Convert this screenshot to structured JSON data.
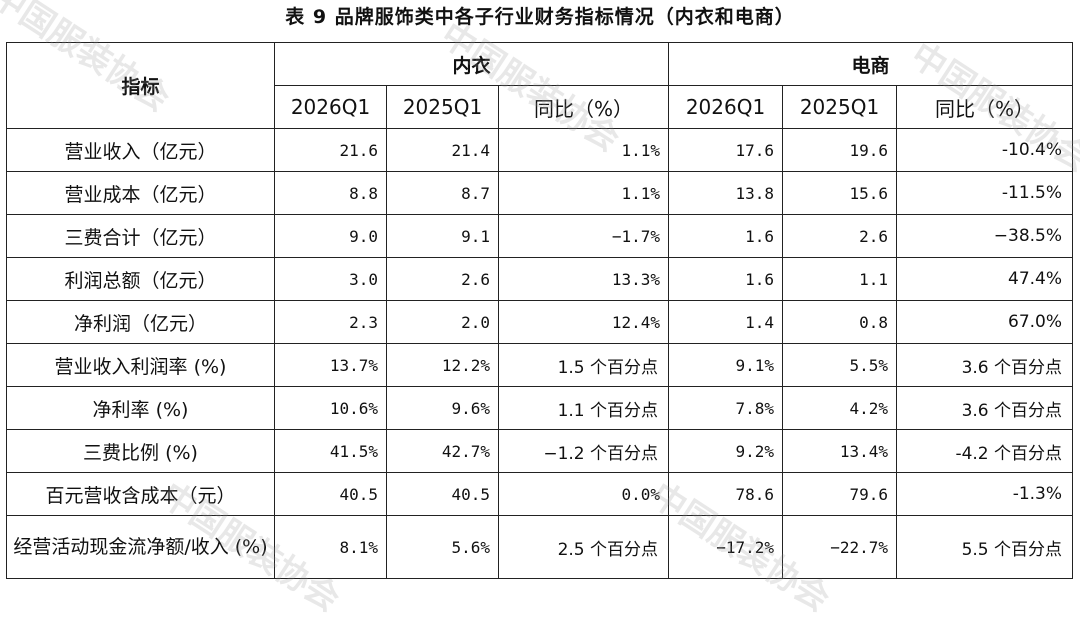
{
  "title": "表 9   品牌服饰类中各子行业财务指标情况（内衣和电商）",
  "header": {
    "indicator": "指标",
    "group1": "内衣",
    "group2": "电商",
    "sub": [
      "2026Q1",
      "2025Q1",
      "同比（%）",
      "2026Q1",
      "2025Q1",
      "同比（%）"
    ]
  },
  "rows": [
    {
      "label": "营业收入（亿元）",
      "cells": [
        "21.6",
        "21.4",
        "1.1%",
        "17.6",
        "19.6",
        "-10.4%"
      ]
    },
    {
      "label": "营业成本（亿元）",
      "cells": [
        "8.8",
        "8.7",
        "1.1%",
        "13.8",
        "15.6",
        "-11.5%"
      ]
    },
    {
      "label": "三费合计（亿元）",
      "cells": [
        "9.0",
        "9.1",
        "−1.7%",
        "1.6",
        "2.6",
        "−38.5%"
      ]
    },
    {
      "label": "利润总额（亿元）",
      "cells": [
        "3.0",
        "2.6",
        "13.3%",
        "1.6",
        "1.1",
        "47.4%"
      ]
    },
    {
      "label": "净利润（亿元）",
      "cells": [
        "2.3",
        "2.0",
        "12.4%",
        "1.4",
        "0.8",
        "67.0%"
      ]
    },
    {
      "label": "营业收入利润率 (%)",
      "cells": [
        "13.7%",
        "12.2%",
        "1.5 个百分点",
        "9.1%",
        "5.5%",
        "3.6 个百分点"
      ]
    },
    {
      "label": "净利率 (%)",
      "cells": [
        "10.6%",
        "9.6%",
        "1.1 个百分点",
        "7.8%",
        "4.2%",
        "3.6 个百分点"
      ]
    },
    {
      "label": "三费比例 (%)",
      "cells": [
        "41.5%",
        "42.7%",
        "−1.2 个百分点",
        "9.2%",
        "13.4%",
        "-4.2 个百分点"
      ]
    },
    {
      "label": "百元营收含成本（元）",
      "cells": [
        "40.5",
        "40.5",
        "0.0%",
        "78.6",
        "79.6",
        "-1.3%"
      ]
    },
    {
      "label": "经营活动现金流净额/收入 (%)",
      "cells": [
        "8.1%",
        "5.6%",
        "2.5 个百分点",
        "−17.2%",
        "−22.7%",
        "5.5 个百分点"
      ]
    }
  ],
  "watermark": "中国服装协会"
}
